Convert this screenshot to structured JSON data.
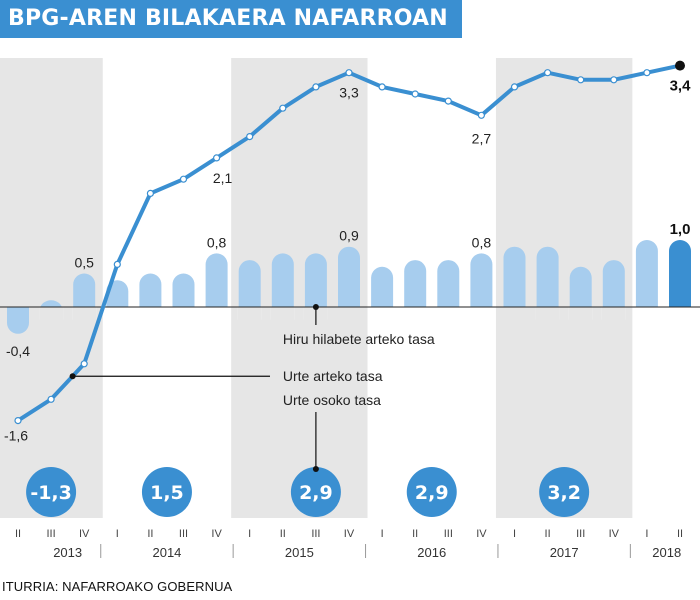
{
  "title": "BPG-AREN BILAKAERA NAFARROAN",
  "source": "ITURRIA: NAFARROAKO GOBERNUA",
  "colors": {
    "line": "#3a8fd1",
    "bar": "#a7cdee",
    "bar_last": "#3a8fd1",
    "shade": "#e6e6e6",
    "circle": "#3a8fd1"
  },
  "chart_data": {
    "type": "bar",
    "quarters": [
      "II",
      "III",
      "IV",
      "I",
      "II",
      "III",
      "IV",
      "I",
      "II",
      "III",
      "IV",
      "I",
      "II",
      "III",
      "IV",
      "I",
      "II",
      "III",
      "IV",
      "I",
      "II"
    ],
    "years": [
      {
        "label": "2013",
        "from": 0,
        "to": 2
      },
      {
        "label": "2014",
        "from": 3,
        "to": 6
      },
      {
        "label": "2015",
        "from": 7,
        "to": 10
      },
      {
        "label": "2016",
        "from": 11,
        "to": 14
      },
      {
        "label": "2017",
        "from": 15,
        "to": 18
      },
      {
        "label": "2018",
        "from": 19,
        "to": 20
      }
    ],
    "series": [
      {
        "name": "Hiru hilabete arteko tasa",
        "type": "bar",
        "values": [
          -0.4,
          0.1,
          0.5,
          0.4,
          0.5,
          0.5,
          0.8,
          0.7,
          0.8,
          0.8,
          0.9,
          0.6,
          0.7,
          0.7,
          0.8,
          0.9,
          0.9,
          0.6,
          0.7,
          1.0,
          1.0
        ]
      },
      {
        "name": "Urte arteko tasa",
        "type": "line",
        "values": [
          -1.6,
          -1.3,
          -0.8,
          0.6,
          1.6,
          1.8,
          2.1,
          2.4,
          2.8,
          3.1,
          3.3,
          3.1,
          3.0,
          2.9,
          2.7,
          3.1,
          3.3,
          3.2,
          3.2,
          3.3,
          3.4
        ]
      },
      {
        "name": "Urte osoko tasa",
        "type": "annual",
        "values": [
          {
            "year": "2013",
            "value": "-1,3"
          },
          {
            "year": "2014",
            "value": "1,5"
          },
          {
            "year": "2015",
            "value": "2,9"
          },
          {
            "year": "2016",
            "value": "2,9"
          },
          {
            "year": "2017",
            "value": "3,2"
          }
        ]
      }
    ],
    "bar_labels": [
      {
        "index": 0,
        "text": "-0,4"
      },
      {
        "index": 2,
        "text": "0,5"
      },
      {
        "index": 6,
        "text": "0,8"
      },
      {
        "index": 10,
        "text": "0,9"
      },
      {
        "index": 14,
        "text": "0,8"
      },
      {
        "index": 20,
        "text": "1,0"
      }
    ],
    "line_labels": [
      {
        "index": 0,
        "text": "-1,6"
      },
      {
        "index": 6,
        "text": "2,1"
      },
      {
        "index": 10,
        "text": "3,3"
      },
      {
        "index": 14,
        "text": "2,7"
      },
      {
        "index": 20,
        "text": "3,4"
      }
    ],
    "grid": false,
    "ylim": [
      -1.6,
      3.4
    ]
  }
}
